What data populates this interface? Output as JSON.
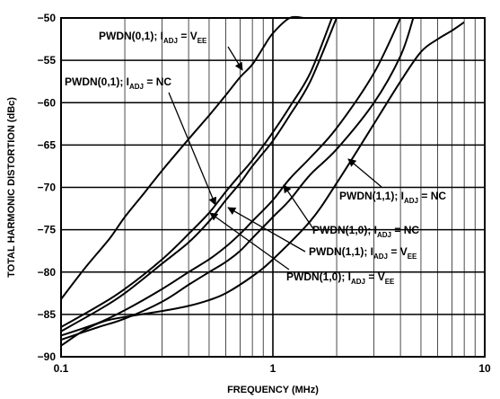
{
  "chart_data": {
    "type": "line",
    "title": "",
    "xlabel": "FREQUENCY (MHz)",
    "ylabel": "TOTAL HARMONIC DISTORTION (dBc)",
    "x_scale": "log",
    "xlim": [
      0.1,
      10
    ],
    "ylim": [
      -90,
      -50
    ],
    "grid": true,
    "x_tick_labels": [
      "0.1",
      "1",
      "10"
    ],
    "y_tick_labels": [
      "-50",
      "-55",
      "-60",
      "-65",
      "-70",
      "-75",
      "-80",
      "-85",
      "-90"
    ],
    "series": [
      {
        "name": "PWDN(0,1); IADJ = VEE",
        "label_main": "PWDN(0,1); I",
        "label_sub": "ADJ",
        "label_eq": " = V",
        "label_sub2": "EE",
        "x": [
          0.1,
          0.13,
          0.17,
          0.2,
          0.25,
          0.3,
          0.4,
          0.5,
          0.6,
          0.7,
          0.8,
          0.9,
          1.0,
          1.2,
          1.4
        ],
        "y": [
          -83.2,
          -79.5,
          -76.0,
          -73.5,
          -70.5,
          -68.0,
          -64.3,
          -61.5,
          -59.1,
          -57.0,
          -55.5,
          -53.5,
          -51.8,
          -50.0,
          -50.0
        ]
      },
      {
        "name": "PWDN(0,1); IADJ = NC",
        "label_main": "PWDN(0,1); I",
        "label_sub": "ADJ",
        "label_eq": " = NC",
        "label_sub2": "",
        "x": [
          0.1,
          0.15,
          0.2,
          0.3,
          0.4,
          0.5,
          0.6,
          0.7,
          0.8,
          1.0,
          1.2,
          1.5,
          1.9
        ],
        "y": [
          -86.5,
          -84.0,
          -82.0,
          -78.5,
          -75.5,
          -73.0,
          -70.5,
          -68.5,
          -66.8,
          -63.5,
          -60.5,
          -56.5,
          -50.0
        ]
      },
      {
        "name": "PWDN(1,1); IADJ = VEE",
        "label_main": "PWDN(1,1); I",
        "label_sub": "ADJ",
        "label_eq": " = V",
        "label_sub2": "EE",
        "x": [
          0.1,
          0.15,
          0.2,
          0.3,
          0.4,
          0.5,
          0.6,
          0.7,
          0.8,
          1.0,
          1.2,
          1.5,
          2.0
        ],
        "y": [
          -87.0,
          -84.5,
          -82.5,
          -79.0,
          -76.5,
          -74.0,
          -71.5,
          -69.5,
          -67.5,
          -64.5,
          -61.5,
          -57.5,
          -50.0
        ]
      },
      {
        "name": "PWDN(1,0); IADJ = NC",
        "label_main": "PWDN(1,0); I",
        "label_sub": "ADJ",
        "label_eq": " = NC",
        "label_sub2": "",
        "x": [
          0.1,
          0.15,
          0.2,
          0.3,
          0.4,
          0.5,
          0.6,
          0.7,
          0.8,
          1.0,
          1.2,
          1.5,
          2.0,
          3.0,
          4.0
        ],
        "y": [
          -87.5,
          -86.0,
          -84.5,
          -82.0,
          -80.0,
          -78.5,
          -77.0,
          -75.5,
          -74.0,
          -71.5,
          -69.0,
          -66.5,
          -63.0,
          -56.5,
          -50.0
        ]
      },
      {
        "name": "PWDN(1,1); IADJ = NC",
        "label_main": "PWDN(1,1); I",
        "label_sub": "ADJ",
        "label_eq": " = NC",
        "label_sub2": "",
        "x": [
          0.1,
          0.15,
          0.2,
          0.3,
          0.4,
          0.5,
          0.6,
          0.7,
          0.8,
          1.0,
          1.2,
          1.5,
          2.0,
          3.0,
          4.0,
          4.6
        ],
        "y": [
          -88.0,
          -86.5,
          -85.5,
          -83.5,
          -81.5,
          -80.0,
          -78.8,
          -77.5,
          -76.0,
          -73.5,
          -71.5,
          -68.5,
          -65.5,
          -60.0,
          -54.5,
          -50.0
        ]
      },
      {
        "name": "PWDN(1,0); IADJ = VEE",
        "label_main": "PWDN(1,0); I",
        "label_sub": "ADJ",
        "label_eq": " = V",
        "label_sub2": "EE",
        "x": [
          0.1,
          0.13,
          0.16,
          0.2,
          0.3,
          0.4,
          0.5,
          0.6,
          0.8,
          1.0,
          1.5,
          2.0,
          3.0,
          4.0,
          5.0,
          6.0,
          7.0,
          8.0
        ],
        "y": [
          -88.7,
          -86.8,
          -85.8,
          -85.3,
          -84.6,
          -84.0,
          -83.3,
          -82.5,
          -80.5,
          -78.5,
          -74.0,
          -69.5,
          -62.5,
          -57.5,
          -54.0,
          -52.5,
          -51.5,
          -50.5
        ]
      }
    ]
  }
}
